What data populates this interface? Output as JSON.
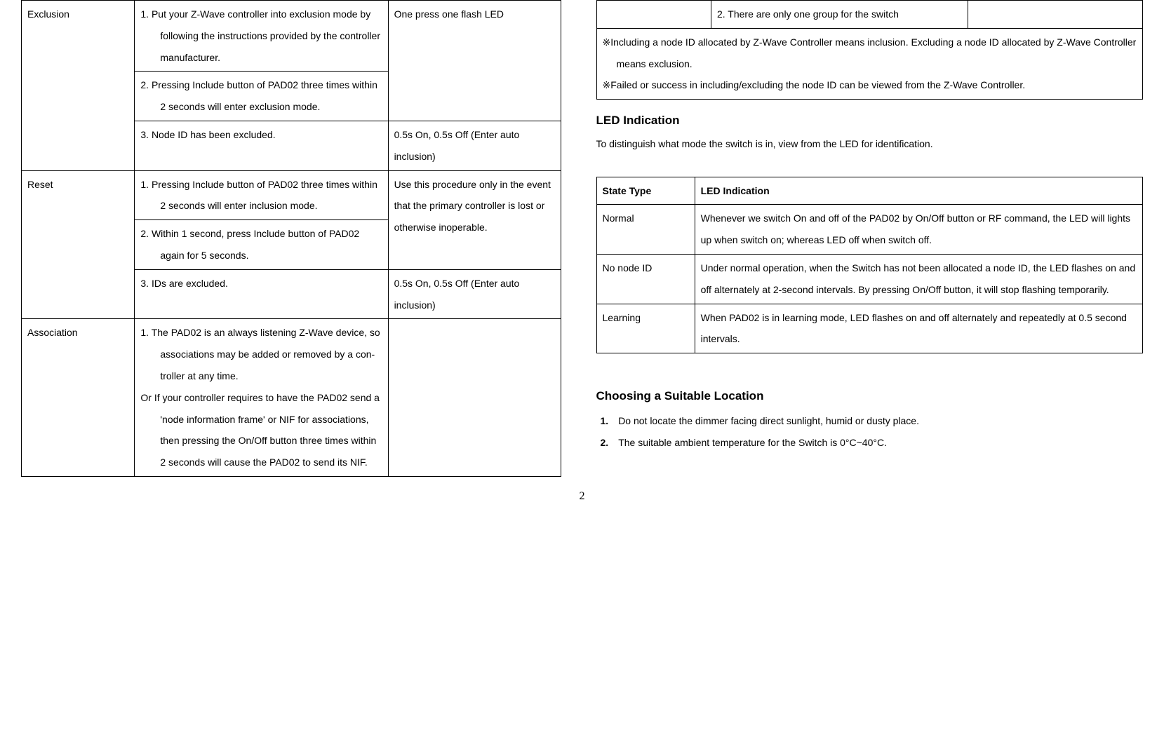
{
  "left_table": {
    "rows": [
      {
        "label": "Exclusion",
        "steps": [
          {
            "text": "1.    Put your Z-Wave controller into exclusion mode by following the instructions provided by the controller manufacturer.",
            "note": "One press one flash LED",
            "note_rowspan": 2
          },
          {
            "text": "2. Pressing Include button of PAD02 three times within 2 seconds will enter exclusion mode.",
            "note": null
          },
          {
            "text": "3. Node ID has been excluded.",
            "note": "0.5s On, 0.5s Off (Enter auto inclusion)"
          }
        ]
      },
      {
        "label": "Reset",
        "steps": [
          {
            "text": "1.  Pressing Include button of PAD02 three times within 2 seconds will enter inclusion mode.",
            "note": "Use this procedure only in the event that the primary controller is lost or otherwise inoperable.",
            "note_rowspan": 2
          },
          {
            "text": "2.  Within 1 second, press Include button of PAD02 again for 5 seconds.",
            "note": null
          },
          {
            "text": "3.  IDs are excluded.",
            "note": "0.5s On, 0.5s Off (Enter auto inclusion)"
          }
        ]
      },
      {
        "label": "Association",
        "steps": [
          {
            "text_lines": [
              "1.    The PAD02 is an always listening Z-Wave device, so associations may be added or removed by a con-troller at any time.",
              "Or  If your controller requires to have the PAD02 send a 'node information frame' or NIF for associations, then pressing the On/Off button three times within 2 seconds will cause the PAD02 to send its NIF."
            ],
            "note": ""
          }
        ]
      }
    ]
  },
  "right_top_table": {
    "cell1": "",
    "cell2": "2.  There are only one group for the switch",
    "cell3": ""
  },
  "notes": [
    "※Including a node ID allocated by Z-Wave Controller means inclusion.  Excluding a node ID allocated by Z-Wave Controller means exclusion.",
    "※Failed or success in including/excluding the node ID can be viewed from the Z-Wave Controller."
  ],
  "led_section": {
    "heading": "LED Indication",
    "intro": "To distinguish what mode the switch is in, view from the LED for identification.",
    "headers": [
      "State Type",
      "LED Indication"
    ],
    "rows": [
      [
        "Normal",
        "Whenever we switch On and off of the PAD02 by On/Off button or RF command, the LED will lights up when switch on; whereas LED off when switch off."
      ],
      [
        "No node ID",
        "Under normal operation, when the Switch has not been allocated a node ID, the LED flashes on and off alternately at 2-second intervals. By pressing On/Off button, it will stop flashing temporarily."
      ],
      [
        "Learning",
        "When PAD02 is in learning mode, LED flashes on and off alternately and repeatedly at 0.5 second intervals."
      ]
    ]
  },
  "location_section": {
    "heading": "Choosing a Suitable Location",
    "items": [
      "Do not locate the dimmer facing direct sunlight, humid or dusty place.",
      "The suitable ambient temperature for the Switch is 0°C~40°C."
    ]
  },
  "page_number": "2",
  "col_widths": {
    "left_c1": "21%",
    "left_c2": "47%",
    "left_c3": "32%",
    "right_top_c1": "21%",
    "right_top_c2": "47%",
    "right_top_c3": "32%",
    "led_c1": "18%",
    "led_c2": "82%"
  }
}
